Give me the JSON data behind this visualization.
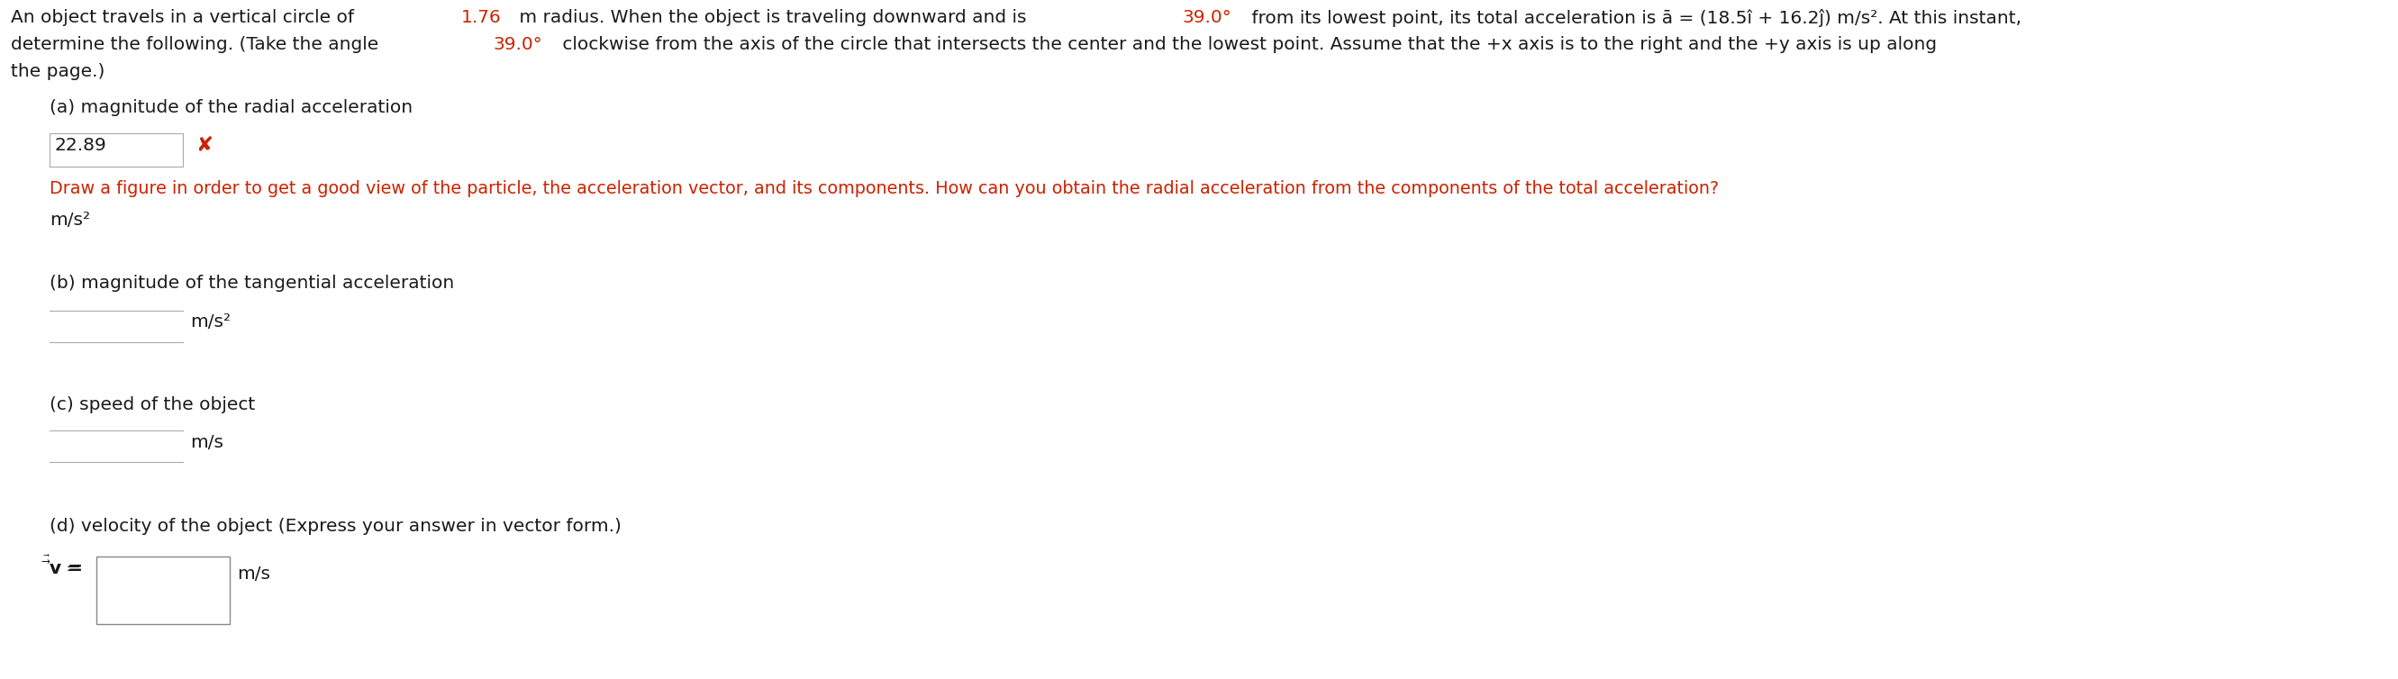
{
  "highlight_color": "#cc2200",
  "normal_color": "#1a1a1a",
  "hint_color": "#cc2200",
  "background_color": "#ffffff",
  "part_a_label": "(a) magnitude of the radial acceleration",
  "part_a_answer": "22.89",
  "part_a_unit": "m/s²",
  "part_a_hint": "Draw a figure in order to get a good view of the particle, the acceleration vector, and its components. How can you obtain the radial acceleration from the components of the total acceleration?",
  "part_b_label": "(b) magnitude of the tangential acceleration",
  "part_b_unit": "m/s²",
  "part_c_label": "(c) speed of the object",
  "part_c_unit": "m/s",
  "part_d_label": "(d) velocity of the object (Express your answer in vector form.)",
  "part_d_unit": "m/s",
  "font_size": 14.5,
  "font_size_hint": 13.8
}
